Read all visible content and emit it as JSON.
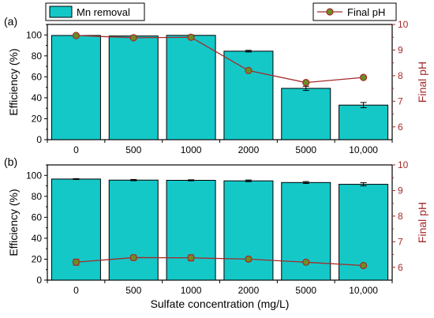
{
  "chart_data": [
    {
      "type": "bar",
      "panel_label": "(a)",
      "categories": [
        "0",
        "500",
        "1000",
        "2000",
        "5000",
        "10,000"
      ],
      "series": [
        {
          "name": "Mn removal",
          "type": "bar",
          "axis": "left",
          "values": [
            99.5,
            99.0,
            99.6,
            84.5,
            49.0,
            33.0
          ],
          "errors": [
            0.3,
            0.4,
            0.3,
            0.8,
            2.0,
            2.5
          ]
        },
        {
          "name": "Final pH",
          "type": "line",
          "axis": "right",
          "values": [
            9.57,
            9.48,
            9.5,
            8.2,
            7.73,
            7.93
          ],
          "errors": [
            0.05,
            0.05,
            0.05,
            0.05,
            0.05,
            0.05
          ]
        }
      ],
      "xlabel": "",
      "ylabel": "Efficiency (%)",
      "y2label": "Final pH",
      "ylim": [
        0,
        110
      ],
      "y2lim": [
        5.5,
        10
      ],
      "yticks": [
        0,
        20,
        40,
        60,
        80,
        100
      ],
      "y2ticks": [
        6,
        7,
        8,
        9,
        10
      ],
      "legend": "top"
    },
    {
      "type": "bar",
      "panel_label": "(b)",
      "categories": [
        "0",
        "500",
        "1000",
        "2000",
        "5000",
        "10,000"
      ],
      "series": [
        {
          "name": "Mn removal",
          "type": "bar",
          "axis": "left",
          "values": [
            96.5,
            95.5,
            95.3,
            94.8,
            93.2,
            91.5
          ],
          "errors": [
            0.4,
            0.6,
            0.5,
            0.8,
            0.9,
            1.5
          ]
        },
        {
          "name": "Final pH",
          "type": "line",
          "axis": "right",
          "values": [
            6.2,
            6.38,
            6.37,
            6.32,
            6.2,
            6.07
          ],
          "errors": [
            0.12,
            0.1,
            0.12,
            0.08,
            0.06,
            0.06
          ]
        }
      ],
      "xlabel": "Sulfate concentration (mg/L)",
      "ylabel": "Efficiency (%)",
      "y2label": "Final pH",
      "ylim": [
        0,
        110
      ],
      "y2lim": [
        5.5,
        10
      ],
      "yticks": [
        0,
        20,
        40,
        60,
        80,
        100
      ],
      "y2ticks": [
        6,
        7,
        8,
        9,
        10
      ]
    }
  ],
  "colors": {
    "bar_fill": "#14c8c8",
    "bar_stroke": "#000000",
    "line": "#a52a2a",
    "marker_fill": "#6b8e23",
    "marker_edge": "#a52a2a",
    "right_axis": "#a52a2a"
  }
}
